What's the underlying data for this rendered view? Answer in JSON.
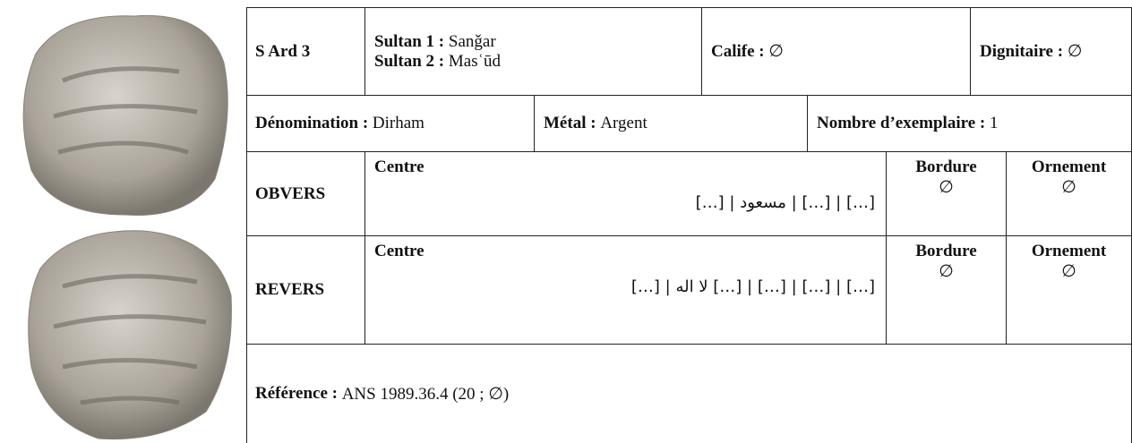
{
  "record": {
    "id": "S Ard 3",
    "sultan1": {
      "label": "Sultan 1 :",
      "value": "Sanǧar"
    },
    "sultan2": {
      "label": "Sultan 2 :",
      "value": "Masʿūd"
    },
    "calife": {
      "label": "Calife :",
      "value": "∅"
    },
    "dignitaire": {
      "label": "Dignitaire :",
      "value": "∅"
    },
    "denomination": {
      "label": "Dénomination :",
      "value": "Dirham"
    },
    "metal": {
      "label": "Métal :",
      "value": "Argent"
    },
    "exemplaires": {
      "label": "Nombre d’exemplaire :",
      "value": "1"
    },
    "obvers": {
      "label": "OBVERS",
      "centre_label": "Centre",
      "centre": "[…] | […] | مسعود | […]",
      "bordure_label": "Bordure",
      "bordure": "∅",
      "ornement_label": "Ornement",
      "ornement": "∅"
    },
    "revers": {
      "label": "REVERS",
      "centre_label": "Centre",
      "centre": "[…] | […] | […] | […] لا اله | […]",
      "bordure_label": "Bordure",
      "bordure": "∅",
      "ornement_label": "Ornement",
      "ornement": "∅"
    },
    "reference": {
      "label": "Référence :",
      "value": "ANS 1989.36.4 (20 ; ∅)"
    }
  }
}
